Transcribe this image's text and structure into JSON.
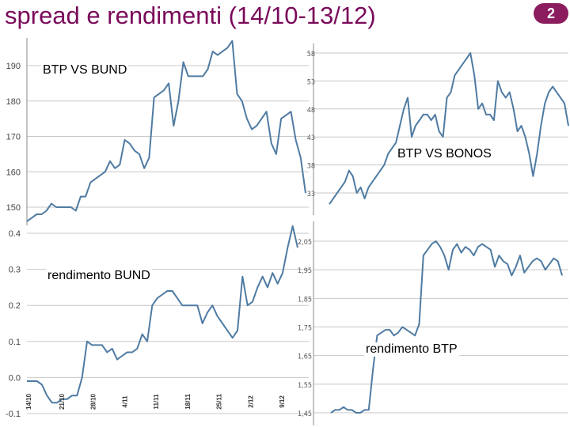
{
  "slide": {
    "title": "spread e rendimenti (14/10-13/12)",
    "number": "2"
  },
  "line_color": "#4f7ba2",
  "chart_data": [
    {
      "type": "line",
      "title": "BTP VS BUND",
      "yticks": [
        "190",
        "180",
        "170",
        "160",
        "150"
      ],
      "ylim": [
        146,
        200
      ],
      "values": [
        146,
        147,
        148,
        148,
        149,
        151,
        150,
        150,
        150,
        150,
        149,
        153,
        153,
        157,
        158,
        159,
        160,
        163,
        161,
        162,
        169,
        168,
        166,
        165,
        161,
        164,
        181,
        182,
        183,
        185,
        173,
        180,
        191,
        187,
        187,
        187,
        187,
        189,
        194,
        193,
        194,
        195,
        197,
        182,
        180,
        175,
        172,
        173,
        175,
        177,
        168,
        165,
        175,
        176,
        177,
        169,
        164,
        154
      ]
    },
    {
      "type": "line",
      "title": "BTP VS BONOS",
      "yticks": [
        "58",
        "53",
        "48",
        "43",
        "38",
        "33"
      ],
      "ylim": [
        30,
        60
      ],
      "values": [
        31,
        32,
        33,
        34,
        35,
        37,
        36,
        33,
        34,
        32,
        34,
        35,
        36,
        37,
        38,
        40,
        41,
        42,
        45,
        48,
        50,
        43,
        45,
        46,
        47,
        47,
        46,
        47,
        44,
        43,
        50,
        51,
        54,
        55,
        56,
        57,
        58,
        54,
        48,
        49,
        47,
        47,
        46,
        53,
        51,
        50,
        51,
        48,
        44,
        45,
        43,
        40,
        36,
        40,
        45,
        49,
        51,
        52,
        51,
        50,
        49,
        45
      ]
    },
    {
      "type": "line",
      "title": "rendimento BUND",
      "yticks": [
        "0.4",
        "0.3",
        "0.2",
        "0.1",
        "0.0",
        "-0.1"
      ],
      "ylim": [
        -0.1,
        0.42
      ],
      "x_labels": [
        "14/10",
        "21/10",
        "28/10",
        "4/11",
        "11/11",
        "18/11",
        "25/11",
        "2/12",
        "9/12"
      ],
      "values": [
        -0.01,
        -0.01,
        -0.01,
        -0.02,
        -0.05,
        -0.07,
        -0.07,
        -0.06,
        -0.06,
        -0.05,
        -0.05,
        0.0,
        0.1,
        0.09,
        0.09,
        0.09,
        0.07,
        0.08,
        0.05,
        0.06,
        0.07,
        0.07,
        0.08,
        0.12,
        0.1,
        0.2,
        0.22,
        0.23,
        0.24,
        0.24,
        0.22,
        0.2,
        0.2,
        0.2,
        0.2,
        0.15,
        0.18,
        0.2,
        0.17,
        0.15,
        0.13,
        0.11,
        0.13,
        0.28,
        0.2,
        0.21,
        0.25,
        0.28,
        0.25,
        0.29,
        0.26,
        0.29,
        0.36,
        0.42,
        0.36
      ]
    },
    {
      "type": "line",
      "title": "rendimento BTP",
      "yticks": [
        "2,05",
        "1,95",
        "1,85",
        "1,75",
        "1,65",
        "1,55",
        "1,45"
      ],
      "ylim": [
        1.43,
        2.08
      ],
      "values": [
        1.45,
        1.46,
        1.46,
        1.47,
        1.46,
        1.46,
        1.45,
        1.45,
        1.46,
        1.46,
        1.6,
        1.72,
        1.73,
        1.74,
        1.74,
        1.72,
        1.73,
        1.75,
        1.74,
        1.73,
        1.72,
        1.76,
        2.0,
        2.02,
        2.04,
        2.05,
        2.03,
        2.0,
        1.95,
        2.02,
        2.04,
        2.01,
        2.03,
        2.02,
        2.0,
        2.03,
        2.04,
        2.03,
        2.02,
        1.96,
        2.0,
        1.98,
        1.97,
        1.93,
        1.96,
        2.0,
        1.94,
        1.96,
        1.98,
        1.99,
        1.98,
        1.95,
        1.97,
        1.99,
        1.98,
        1.93
      ]
    }
  ]
}
